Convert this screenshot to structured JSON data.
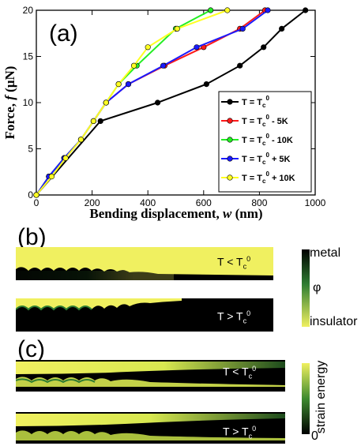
{
  "panel_a_label": "(a)",
  "panel_b_label": "(b)",
  "panel_c_label": "(c)",
  "chart_data": {
    "type": "line",
    "xlabel_text": "Bending displacement, ",
    "xlabel_symbol": "w",
    "xlabel_unit": " (nm)",
    "ylabel_text": "Force, ",
    "ylabel_symbol": "f",
    "ylabel_unit": " (μN)",
    "xlim": [
      0,
      1000
    ],
    "ylim": [
      0,
      20
    ],
    "xticks": [
      "0",
      "200",
      "400",
      "600",
      "800",
      "1000"
    ],
    "yticks": [
      "0",
      "5",
      "10",
      "15",
      "20"
    ],
    "grid": false,
    "legend_position": "right",
    "series": [
      {
        "name_main": "T = T",
        "name_sub": "c",
        "name_sup": "0",
        "name_suffix": "",
        "color": "#000000",
        "x": [
          0,
          230,
          435,
          610,
          730,
          815,
          880,
          965
        ],
        "y": [
          0,
          8,
          10,
          12,
          14,
          16,
          18,
          20
        ]
      },
      {
        "name_main": "T = T",
        "name_sub": "c",
        "name_sup": "0",
        "name_suffix": " - 5K",
        "color": "#ff1a1a",
        "x": [
          0,
          45,
          100,
          160,
          250,
          330,
          460,
          600,
          730,
          820
        ],
        "y": [
          0,
          2,
          4,
          6,
          10,
          12,
          14,
          16,
          18,
          20
        ]
      },
      {
        "name_main": "T = T",
        "name_sub": "c",
        "name_sup": "0",
        "name_suffix": " - 10K",
        "color": "#22ee22",
        "x": [
          0,
          45,
          100,
          160,
          205,
          250,
          295,
          360,
          500,
          625
        ],
        "y": [
          0,
          2,
          4,
          6,
          8,
          10,
          12,
          14,
          18,
          20
        ]
      },
      {
        "name_main": "T = T",
        "name_sub": "c",
        "name_sup": "0",
        "name_suffix": " + 5K",
        "color": "#1a1aff",
        "x": [
          0,
          45,
          100,
          160,
          250,
          330,
          455,
          575,
          740,
          830
        ],
        "y": [
          0,
          2,
          4,
          6,
          10,
          12,
          14,
          16,
          18,
          20
        ]
      },
      {
        "name_main": "T = T",
        "name_sub": "c",
        "name_sup": "0",
        "name_suffix": " + 10K",
        "color": "#ffff22",
        "x": [
          0,
          55,
          105,
          160,
          205,
          250,
          295,
          350,
          400,
          505,
          685
        ],
        "y": [
          0,
          2,
          4,
          6,
          8,
          10,
          12,
          14,
          16,
          18,
          20
        ]
      }
    ]
  },
  "panel_b": {
    "strip_top_label": {
      "main": "T < T",
      "sub": "c",
      "sup": "0"
    },
    "strip_bottom_label": {
      "main": "T > T",
      "sub": "c",
      "sup": "0"
    },
    "colorbar_top": "metal",
    "colorbar_symbol": "φ",
    "colorbar_bottom": "insulator",
    "colors": {
      "metal": "#000000",
      "mid": "#2e7d32",
      "insulator": "#f0f060"
    }
  },
  "panel_c": {
    "strip_top_label": {
      "main": "T < T",
      "sub": "c",
      "sup": "0"
    },
    "strip_bottom_label": {
      "main": "T > T",
      "sub": "c",
      "sup": "0"
    },
    "colorbar_title": "strain energy",
    "colorbar_bottom": "0"
  }
}
